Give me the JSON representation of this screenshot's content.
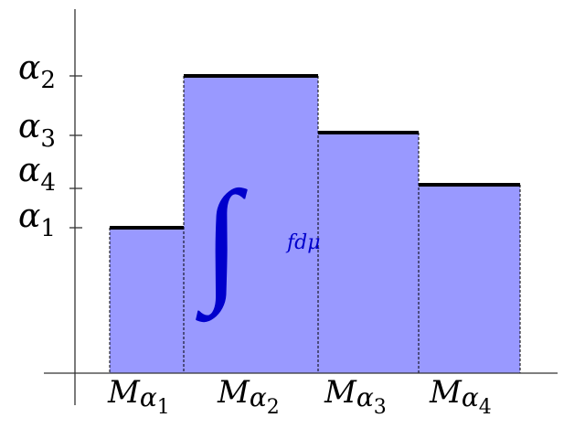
{
  "y_labels": [
    {
      "symbol": "α",
      "index": "2"
    },
    {
      "symbol": "α",
      "index": "3"
    },
    {
      "symbol": "α",
      "index": "4"
    },
    {
      "symbol": "α",
      "index": "1"
    }
  ],
  "x_labels": [
    {
      "symbol": "M",
      "sub": "α",
      "index": "1"
    },
    {
      "symbol": "M",
      "sub": "α",
      "index": "2"
    },
    {
      "symbol": "M",
      "sub": "α",
      "index": "3"
    },
    {
      "symbol": "M",
      "sub": "α",
      "index": "4"
    }
  ],
  "integral": {
    "sign": "∫",
    "integrand": "fdμ"
  }
}
